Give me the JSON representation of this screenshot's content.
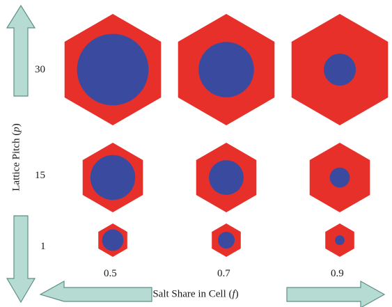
{
  "figure": {
    "x_axis": {
      "label_text": "Salt Share in Cell (",
      "label_var": "f",
      "label_close": ")",
      "ticks": [
        "0.5",
        "0.7",
        "0.9"
      ]
    },
    "y_axis": {
      "label_text": "Lattice Pitch (",
      "label_var": "p",
      "label_close": ")",
      "ticks": [
        "30",
        "15",
        "1"
      ]
    }
  },
  "cells": {
    "pitches": [
      30,
      15,
      1
    ],
    "salt_shares": [
      0.5,
      0.7,
      0.9
    ]
  },
  "colors": {
    "hexagon": "#e8302a",
    "circle": "#3a4a9e",
    "arrow_fill": "#b6dbd2",
    "arrow_stroke": "#5d8f86",
    "text": "#1a1a1a"
  }
}
